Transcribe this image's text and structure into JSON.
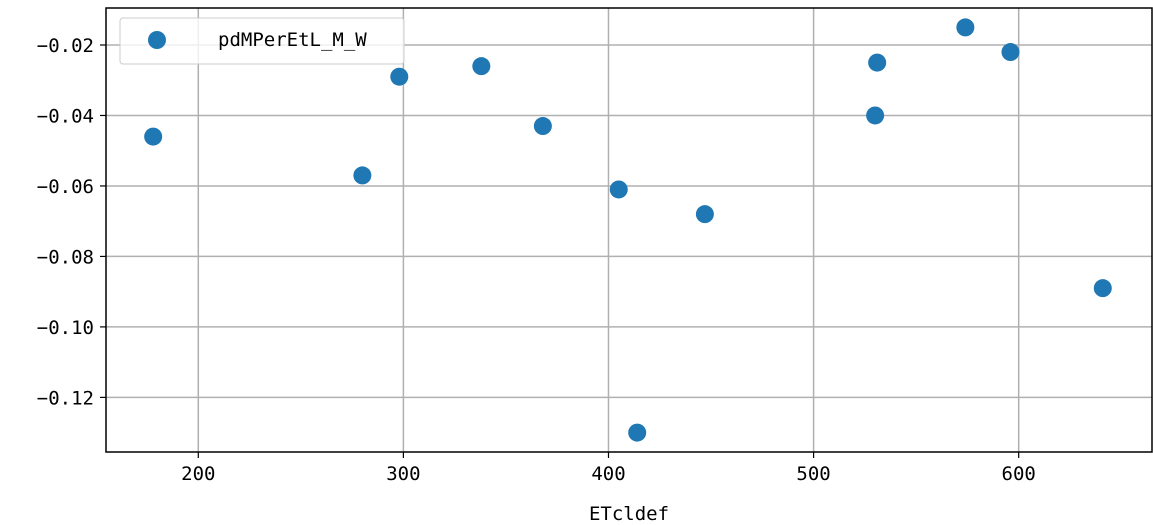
{
  "chart_data": {
    "type": "scatter",
    "title": "",
    "xlabel": "ETcldef",
    "ylabel": "",
    "xlim": [
      155,
      665
    ],
    "ylim": [
      -0.1355,
      -0.0095
    ],
    "xticks": [
      200,
      300,
      400,
      500,
      600
    ],
    "yticks": [
      -0.02,
      -0.04,
      -0.06,
      -0.08,
      -0.1,
      -0.12
    ],
    "xtick_labels": [
      "200",
      "300",
      "400",
      "500",
      "600"
    ],
    "ytick_labels": [
      "−0.02",
      "−0.04",
      "−0.06",
      "−0.08",
      "−0.10",
      "−0.12"
    ],
    "grid": true,
    "legend_position": "top-left",
    "series": [
      {
        "name": "pdMPerEtL_M_W",
        "color": "#1f77b4",
        "marker": "circle",
        "points": [
          {
            "x": 178,
            "y": -0.046
          },
          {
            "x": 280,
            "y": -0.057
          },
          {
            "x": 298,
            "y": -0.029
          },
          {
            "x": 338,
            "y": -0.026
          },
          {
            "x": 368,
            "y": -0.043
          },
          {
            "x": 405,
            "y": -0.061
          },
          {
            "x": 414,
            "y": -0.13
          },
          {
            "x": 447,
            "y": -0.068
          },
          {
            "x": 530,
            "y": -0.04
          },
          {
            "x": 531,
            "y": -0.025
          },
          {
            "x": 574,
            "y": -0.015
          },
          {
            "x": 596,
            "y": -0.022
          },
          {
            "x": 641,
            "y": -0.089
          }
        ]
      }
    ]
  }
}
